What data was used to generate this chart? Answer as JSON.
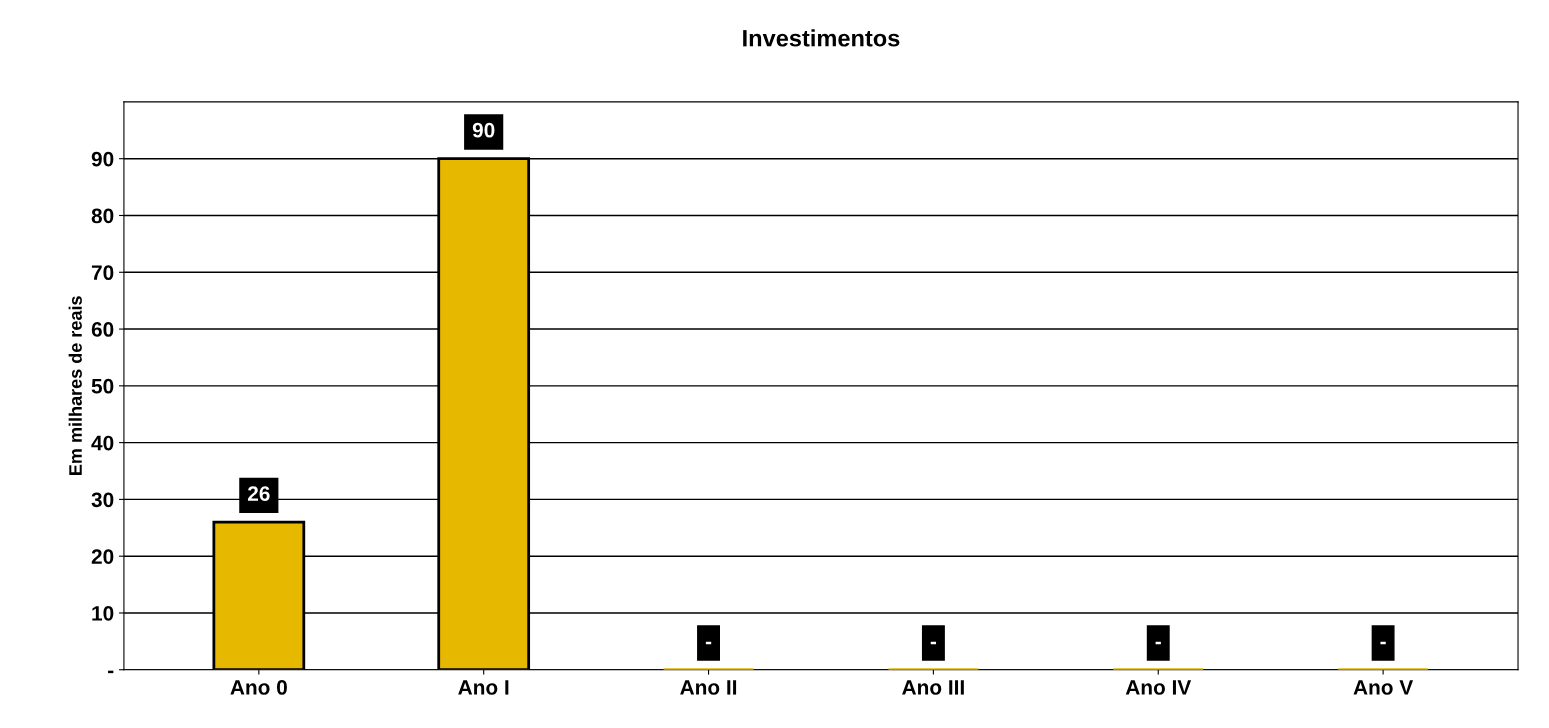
{
  "chart_data": {
    "type": "bar",
    "title": "Investimentos",
    "ylabel": "Em milhares de reais",
    "categories": [
      "Ano 0",
      "Ano I",
      "Ano II",
      "Ano III",
      "Ano IV",
      "Ano V"
    ],
    "values": [
      26,
      90,
      0,
      0,
      0,
      0
    ],
    "value_labels": [
      "26",
      "90",
      "-",
      "-",
      "-",
      "-"
    ],
    "color": "#e6b800",
    "ylim": [
      0,
      100
    ],
    "yticks": [
      {
        "value": 0,
        "label": "-"
      },
      10,
      20,
      30,
      40,
      50,
      60,
      70,
      80,
      90
    ],
    "grid": "y"
  }
}
